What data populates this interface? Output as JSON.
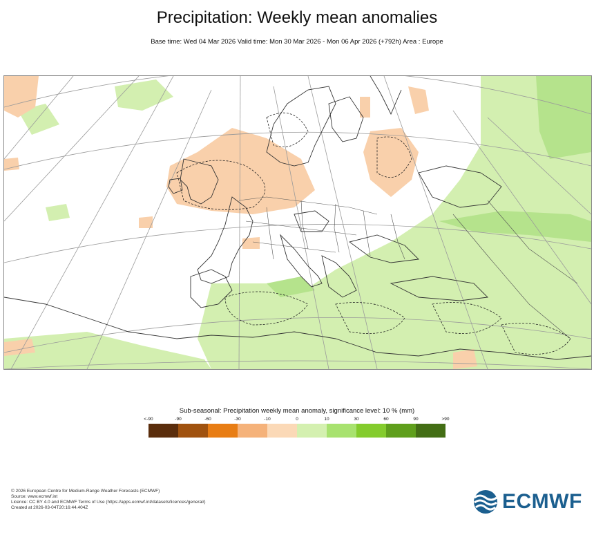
{
  "header": {
    "title": "Precipitation: Weekly mean anomalies",
    "subtitle": "Base time: Wed 04 Mar 2026 Valid time: Mon 30 Mar 2026 - Mon 06 Apr 2026 (+792h) Area : Europe"
  },
  "legend": {
    "title": "Sub-seasonal: Precipitation weekly mean anomaly, significance level: 10 % (mm)",
    "ticks": [
      "<-90",
      "-90",
      "-60",
      "-30",
      "-10",
      "0",
      "10",
      "30",
      "60",
      "90",
      ">90"
    ],
    "colors": [
      "#5a2d0c",
      "#a0520f",
      "#e87d14",
      "#f5b27a",
      "#fbd9b7",
      "#d4f0b0",
      "#a8e26f",
      "#84cc2d",
      "#5f9f1c",
      "#436e15"
    ]
  },
  "map": {
    "area": "Europe",
    "anomaly_colors": {
      "dry_light": "#f9d0ab",
      "dry": "#f2b789",
      "wet_light": "#d3efb0",
      "wet": "#b5e38c"
    },
    "overlays": [
      "coastlines",
      "country-borders",
      "graticule",
      "significance-contours"
    ]
  },
  "footer": {
    "copyright": "© 2026 European Centre for Medium-Range Weather Forecasts (ECMWF)",
    "source": "Source: www.ecmwf.int",
    "licence": "Licence: CC BY 4.0 and ECMWF Terms of Use (https://apps.ecmwf.int/datasets/licences/general/)",
    "created": "Created at 2026-03-04T20:16:44.404Z"
  },
  "logo": {
    "text": "ECMWF",
    "color": "#1b5f8f"
  }
}
